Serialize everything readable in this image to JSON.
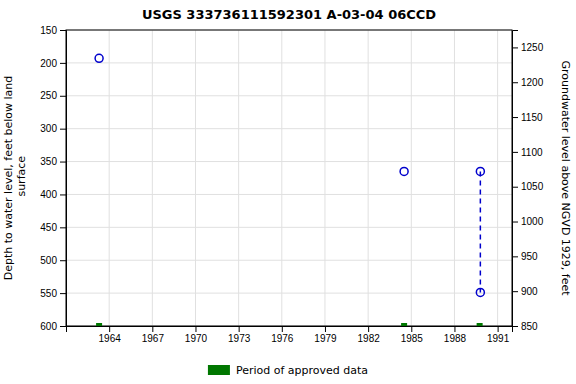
{
  "chart_data": {
    "type": "scatter",
    "title": "USGS 333736111592301 A-03-04 06CCD",
    "ylabel": "Depth to water level, feet below land\n surface",
    "y2label": "Groundwater level above NGVD 1929, feet",
    "xlim": [
      1961,
      1992
    ],
    "xticks": [
      1964,
      1967,
      1970,
      1973,
      1976,
      1979,
      1982,
      1985,
      1988,
      1991
    ],
    "ylim": [
      600,
      150
    ],
    "yticks": [
      150,
      200,
      250,
      300,
      350,
      400,
      450,
      500,
      550,
      600
    ],
    "y2lim": [
      850,
      1275
    ],
    "y2ticks": [
      850,
      900,
      950,
      1000,
      1050,
      1100,
      1150,
      1200,
      1250
    ],
    "grid": true,
    "legend": "lower center",
    "series": [
      {
        "type": "scatter",
        "marker": "circle",
        "color": "#0000cc",
        "x": [
          1963.3,
          1984.5,
          1989.8,
          1989.8
        ],
        "values": [
          193,
          365,
          365,
          549
        ]
      },
      {
        "type": "line",
        "line_style": "dashed",
        "color": "#0000cc",
        "x": [
          1989.8,
          1989.8
        ],
        "values": [
          365,
          549
        ]
      },
      {
        "name": "Period of approved data",
        "type": "scatter",
        "marker": "square",
        "color": "#007700",
        "x": [
          1963.3,
          1984.5,
          1989.75
        ],
        "values": [
          600,
          600,
          600
        ]
      }
    ]
  }
}
